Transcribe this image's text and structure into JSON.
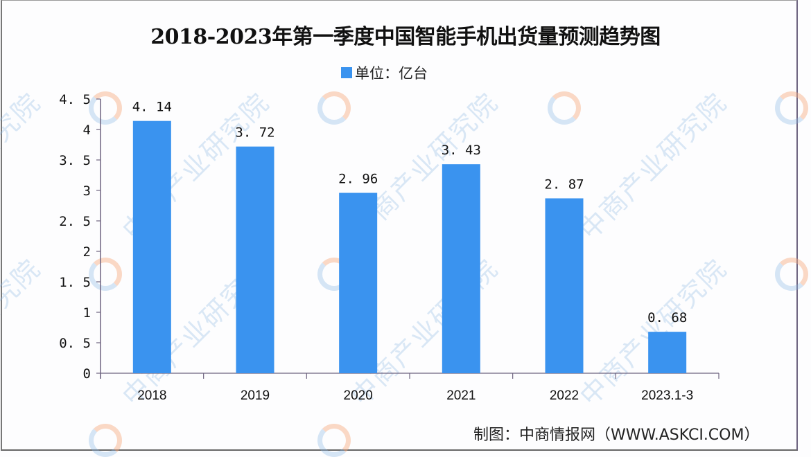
{
  "title": "2018-2023年第一季度中国智能手机出货量预测趋势图",
  "legend": {
    "label": "单位：亿台",
    "color": "#3a93ef"
  },
  "credit": "制图：中商情报网（WWW.ASKCI.COM）",
  "watermark": "中商产业研究院",
  "chart_data": {
    "type": "bar",
    "title": "2018-2023年第一季度中国智能手机出货量预测趋势图",
    "xlabel": "",
    "ylabel": "单位：亿台",
    "categories": [
      "2018",
      "2019",
      "2020",
      "2021",
      "2022",
      "2023.1-3"
    ],
    "values": [
      4.14,
      3.72,
      2.96,
      3.43,
      2.87,
      0.68
    ],
    "value_labels": [
      "4.14",
      "3.72",
      "2.96",
      "3.43",
      "2.87",
      "0.68"
    ],
    "ylim": [
      0,
      4.5
    ],
    "yticks": [
      "0",
      "0.5",
      "1",
      "1.5",
      "2",
      "2.5",
      "3",
      "3.5",
      "4",
      "4.5"
    ],
    "grid": false,
    "legend_position": "top-center",
    "bar_color": "#3a93ef"
  }
}
